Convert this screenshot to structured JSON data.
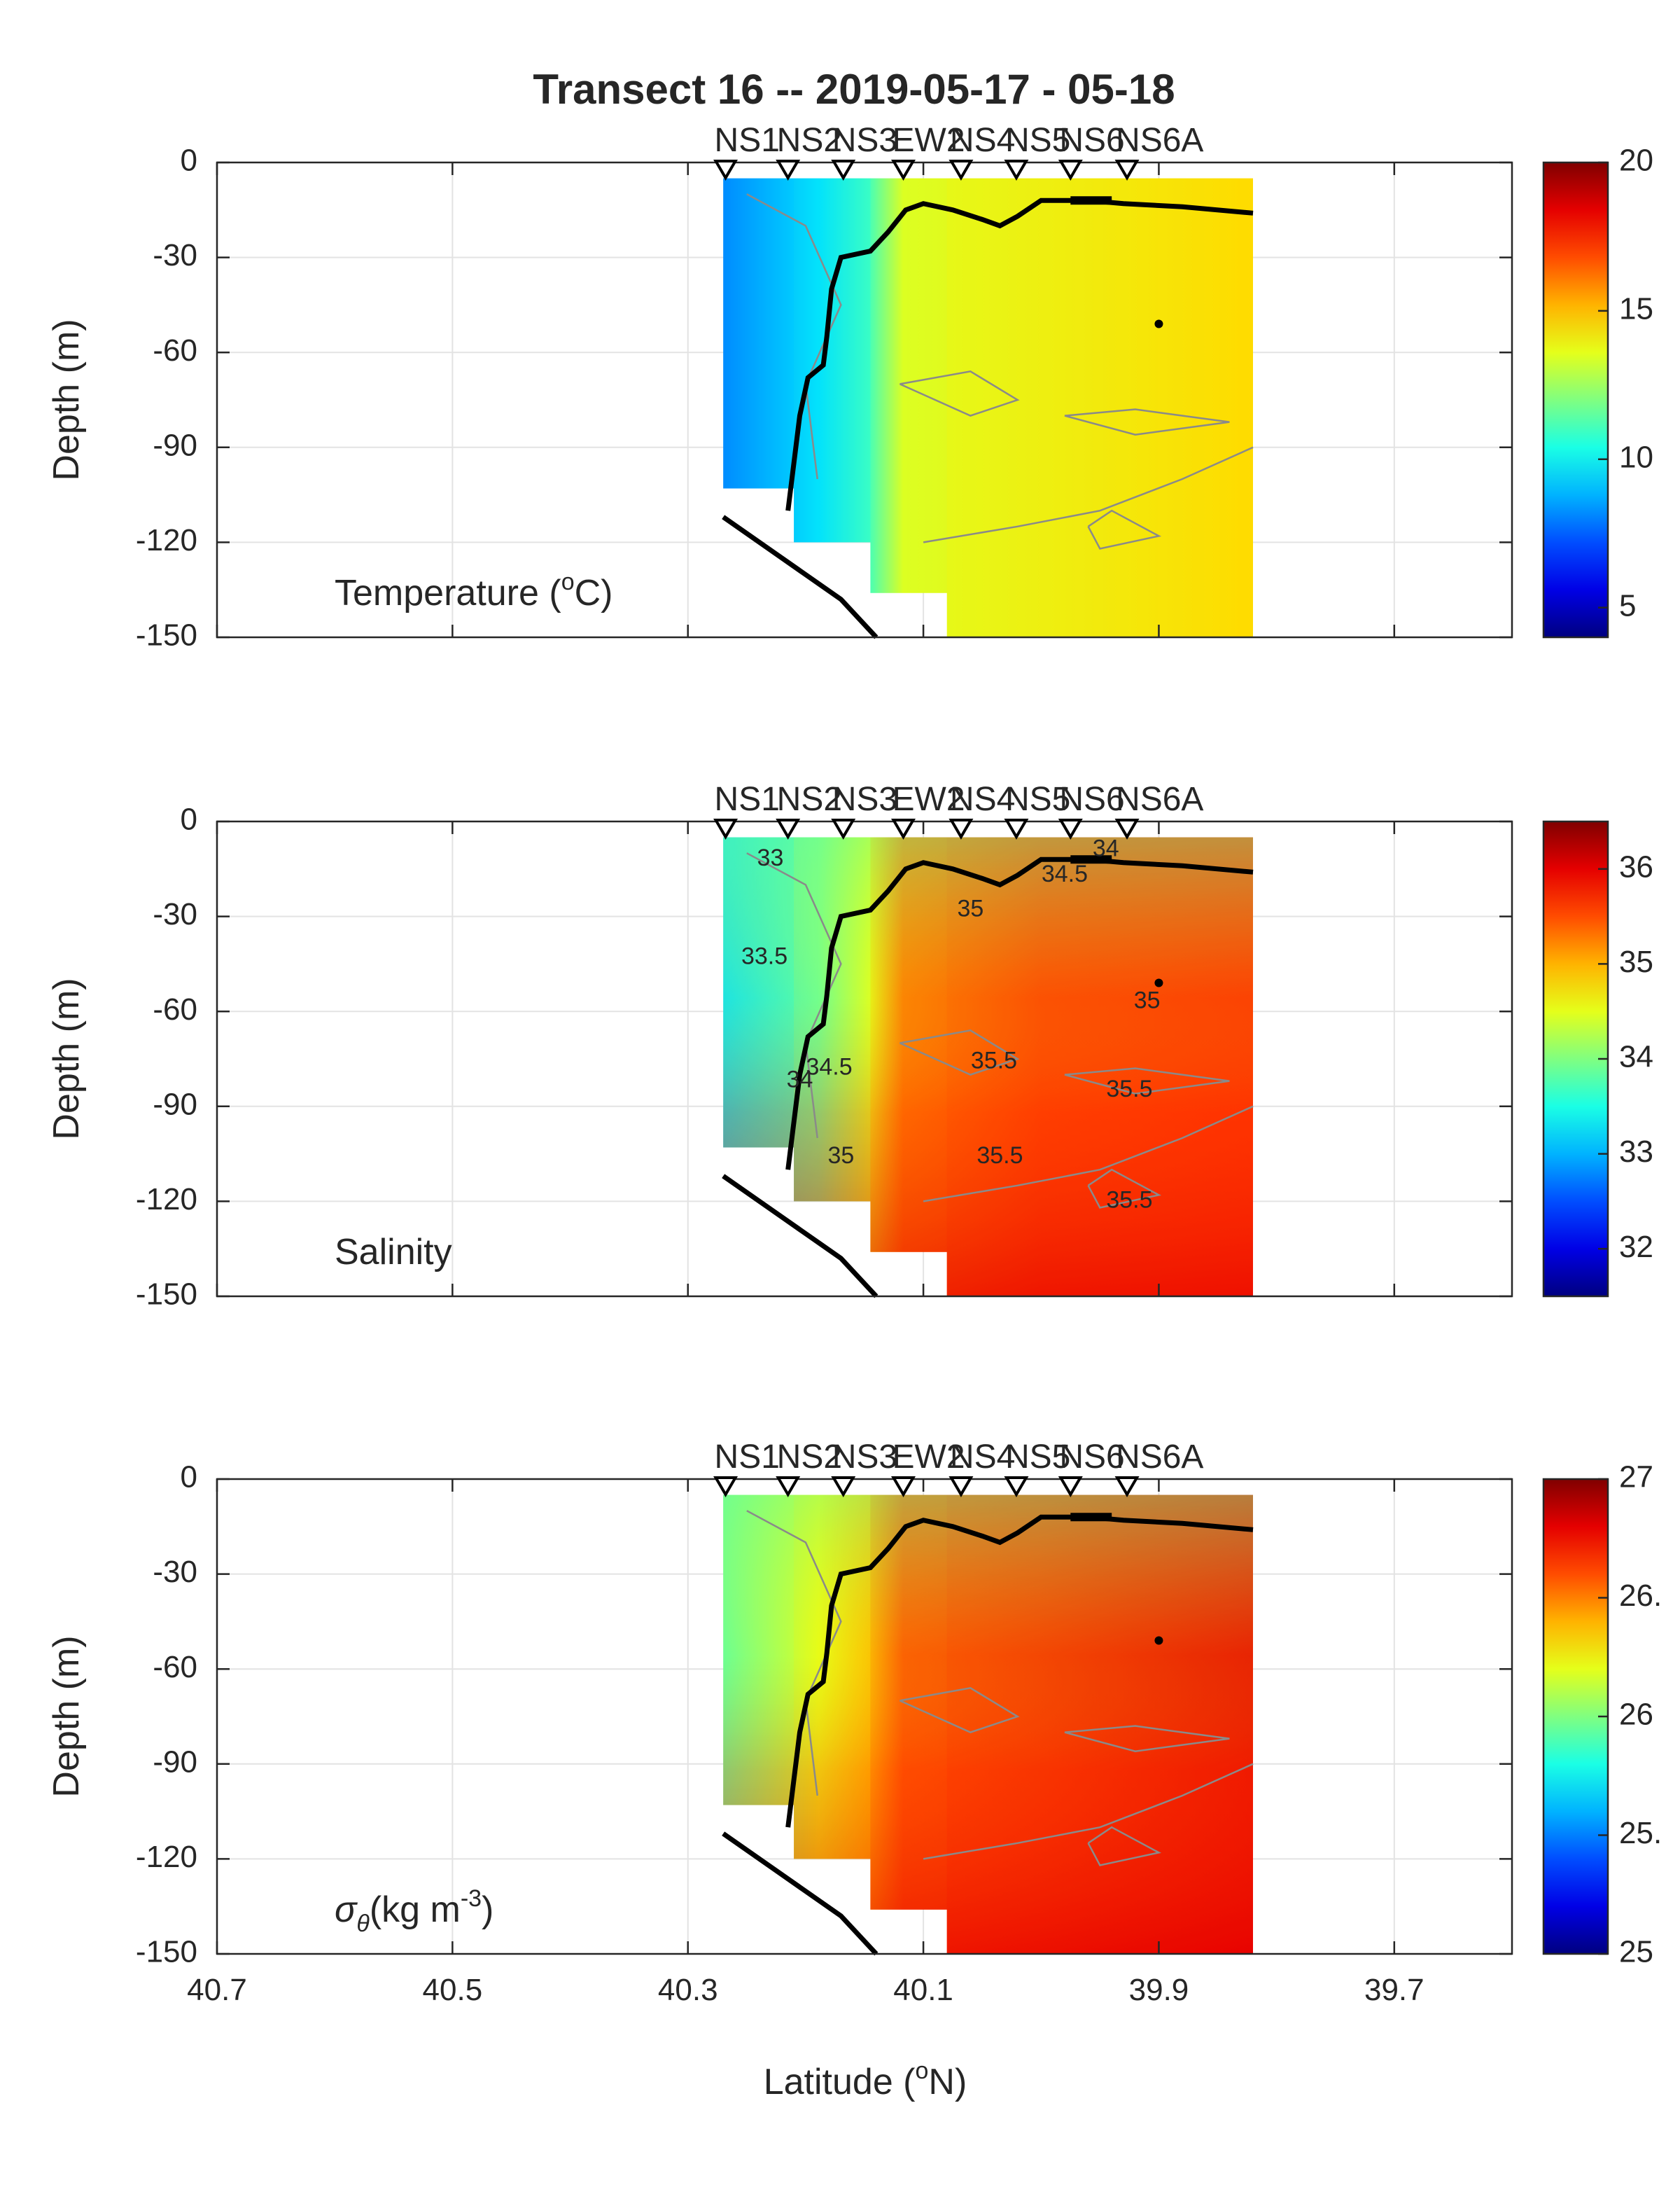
{
  "title": "Transect 16 -- 2019-05-17 - 05-18",
  "xlabel": "Latitude (°N)",
  "ylabel": "Depth (m)",
  "stations": [
    "NS1",
    "NS2",
    "NS3",
    "EW2",
    "NS4",
    "NS5",
    "NS6",
    "NS6A"
  ],
  "chart_data": [
    {
      "type": "heatmap",
      "variable": "Temperature",
      "panel_label": {
        "pre": "Temperature (",
        "sup": "o",
        "post": "C)"
      },
      "xlabel": "",
      "ylabel": "Depth (m)",
      "xlim": [
        40.7,
        39.6
      ],
      "ylim": [
        -150,
        0
      ],
      "x_ticks": [
        "40.7",
        "40.5",
        "40.3",
        "40.1",
        "39.9",
        "39.7"
      ],
      "y_ticks": [
        "0",
        "-30",
        "-60",
        "-90",
        "-120",
        "-150"
      ],
      "colorbar": {
        "min": 4,
        "max": 20,
        "ticks": [
          "5",
          "10",
          "15",
          "20"
        ],
        "colormap": "jet"
      },
      "grid": true,
      "contour_labels": [],
      "fields": [
        {
          "lat_range": [
            40.27,
            40.21
          ],
          "depth_range": [
            -5,
            -103
          ],
          "value": 9.6
        },
        {
          "lat_range": [
            40.21,
            40.145
          ],
          "depth_range": [
            -5,
            -120
          ],
          "value": 10.4
        },
        {
          "lat_range": [
            40.145,
            40.08
          ],
          "depth_range": [
            -5,
            -136
          ],
          "value": 13.2
        },
        {
          "lat_range": [
            40.08,
            39.82
          ],
          "depth_range": [
            -5,
            -150
          ],
          "value": 14.2
        }
      ]
    },
    {
      "type": "heatmap",
      "variable": "Salinity",
      "panel_label": {
        "pre": "Salinity",
        "sup": "",
        "post": ""
      },
      "xlabel": "",
      "ylabel": "Depth (m)",
      "xlim": [
        40.7,
        39.6
      ],
      "ylim": [
        -150,
        0
      ],
      "x_ticks": [
        "40.7",
        "40.5",
        "40.3",
        "40.1",
        "39.9",
        "39.7"
      ],
      "y_ticks": [
        "0",
        "-30",
        "-60",
        "-90",
        "-120",
        "-150"
      ],
      "colorbar": {
        "min": 31.5,
        "max": 36.5,
        "ticks": [
          "32",
          "33",
          "34",
          "35",
          "36"
        ],
        "colormap": "jet"
      },
      "grid": true,
      "contour_labels": [
        {
          "text": "33",
          "lat": 40.23,
          "depth": -12
        },
        {
          "text": "33.5",
          "lat": 40.235,
          "depth": -43
        },
        {
          "text": "35",
          "lat": 40.06,
          "depth": -28
        },
        {
          "text": "34.5",
          "lat": 39.98,
          "depth": -17
        },
        {
          "text": "34",
          "lat": 39.945,
          "depth": -9
        },
        {
          "text": "35",
          "lat": 39.91,
          "depth": -57
        },
        {
          "text": "35.5",
          "lat": 40.04,
          "depth": -76
        },
        {
          "text": "35.5",
          "lat": 39.925,
          "depth": -85
        },
        {
          "text": "35.5",
          "lat": 40.035,
          "depth": -106
        },
        {
          "text": "35.5",
          "lat": 39.925,
          "depth": -120
        },
        {
          "text": "34",
          "lat": 40.205,
          "depth": -82
        },
        {
          "text": "34.5",
          "lat": 40.18,
          "depth": -78
        },
        {
          "text": "35",
          "lat": 40.17,
          "depth": -106
        }
      ],
      "fields": [
        {
          "lat_range": [
            40.27,
            40.21
          ],
          "depth_range": [
            -5,
            -103
          ],
          "value": 33.4
        },
        {
          "lat_range": [
            40.21,
            40.145
          ],
          "depth_range": [
            -5,
            -120
          ],
          "value": 34.2
        },
        {
          "lat_range": [
            40.145,
            40.08
          ],
          "depth_range": [
            -5,
            -136
          ],
          "value": 35.4
        },
        {
          "lat_range": [
            40.08,
            39.82
          ],
          "depth_range": [
            -5,
            -150
          ],
          "value": 35.6
        }
      ]
    },
    {
      "type": "heatmap",
      "variable": "Potential density",
      "panel_label": {
        "pre": "σ",
        "sub": "θ",
        "mid": "(kg m",
        "sup": "-3",
        "post": ")"
      },
      "xlabel": "Latitude (°N)",
      "ylabel": "Depth (m)",
      "xlim": [
        40.7,
        39.6
      ],
      "ylim": [
        -150,
        0
      ],
      "x_ticks": [
        "40.7",
        "40.5",
        "40.3",
        "40.1",
        "39.9",
        "39.7"
      ],
      "y_ticks": [
        "0",
        "-30",
        "-60",
        "-90",
        "-120",
        "-150"
      ],
      "colorbar": {
        "min": 25,
        "max": 27,
        "ticks": [
          "25",
          "25.",
          "26",
          "26.",
          "27"
        ],
        "colormap": "jet"
      },
      "grid": true,
      "contour_labels": [],
      "fields": [
        {
          "lat_range": [
            40.27,
            40.21
          ],
          "depth_range": [
            -5,
            -103
          ],
          "value": 26.1
        },
        {
          "lat_range": [
            40.21,
            40.145
          ],
          "depth_range": [
            -5,
            -120
          ],
          "value": 26.3
        },
        {
          "lat_range": [
            40.145,
            40.08
          ],
          "depth_range": [
            -5,
            -136
          ],
          "value": 26.6
        },
        {
          "lat_range": [
            40.08,
            39.82
          ],
          "depth_range": [
            -5,
            -150
          ],
          "value": 26.7
        }
      ]
    }
  ]
}
